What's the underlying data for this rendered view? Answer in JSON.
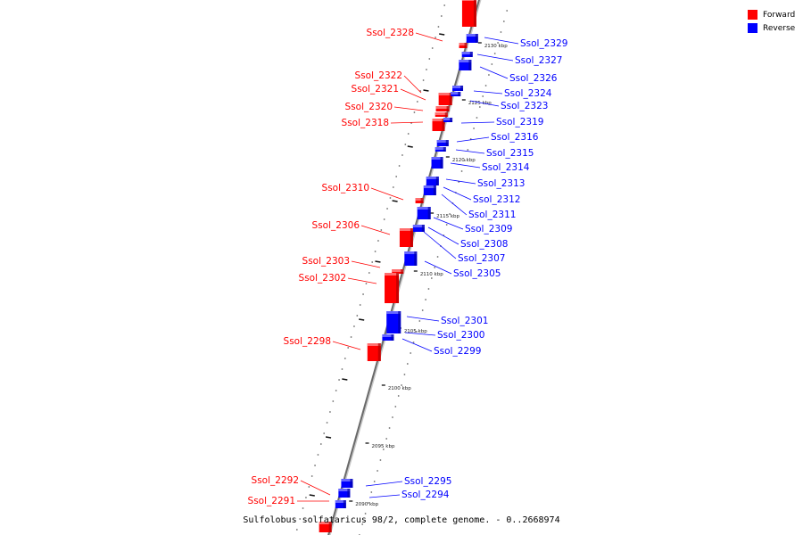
{
  "legend": {
    "forward_label": "Forward",
    "reverse_label": "Reverse",
    "forward_color": "#ff0000",
    "reverse_color": "#0000ff"
  },
  "caption": "Sulfolobus solfataricus 98/2, complete genome. - 0..2668974",
  "axis_ticks": [
    "2130 kbp",
    "2125 kbp",
    "2120 kbp",
    "2115 kbp",
    "2110 kbp",
    "2105 kbp",
    "2100 kbp",
    "2095 kbp",
    "2090 kbp"
  ],
  "genes": {
    "forward": [
      "Ssol_2328",
      "Ssol_2322",
      "Ssol_2321",
      "Ssol_2320",
      "Ssol_2318",
      "Ssol_2310",
      "Ssol_2306",
      "Ssol_2303",
      "Ssol_2302",
      "Ssol_2298",
      "Ssol_2292",
      "Ssol_2291"
    ],
    "reverse": [
      "Ssol_2329",
      "Ssol_2327",
      "Ssol_2326",
      "Ssol_2324",
      "Ssol_2323",
      "Ssol_2319",
      "Ssol_2316",
      "Ssol_2315",
      "Ssol_2314",
      "Ssol_2313",
      "Ssol_2312",
      "Ssol_2311",
      "Ssol_2309",
      "Ssol_2308",
      "Ssol_2307",
      "Ssol_2305",
      "Ssol_2301",
      "Ssol_2300",
      "Ssol_2299",
      "Ssol_2295",
      "Ssol_2294"
    ]
  }
}
